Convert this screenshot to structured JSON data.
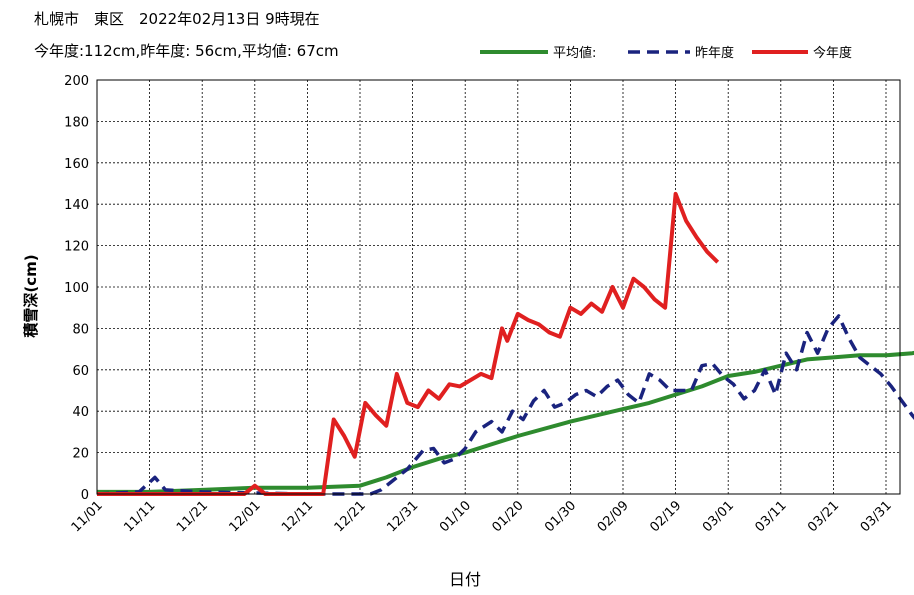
{
  "header": {
    "line1": "札幌市　東区　2022年02月13日 9時現在",
    "line2": "今年度:112cm,昨年度: 56cm,平均値: 67cm"
  },
  "chart_data": {
    "type": "line",
    "xlabel": "日付",
    "ylabel": "積雪深(cm)",
    "ylim": [
      0,
      200
    ],
    "yticks": [
      0,
      20,
      40,
      60,
      80,
      100,
      120,
      140,
      160,
      180,
      200
    ],
    "xticks": [
      "11/01",
      "11/11",
      "11/21",
      "12/01",
      "12/11",
      "12/21",
      "12/31",
      "01/10",
      "01/20",
      "01/30",
      "02/09",
      "02/19",
      "03/01",
      "03/11",
      "03/21",
      "03/31"
    ],
    "x_days_per_tick": 10,
    "x_range_days": [
      0,
      150
    ],
    "grid": true,
    "legend_position": "top-right",
    "series": [
      {
        "name": "平均値:",
        "color": "#2e8b2e",
        "dash": "solid",
        "points": [
          [
            0,
            1
          ],
          [
            10,
            1
          ],
          [
            20,
            2
          ],
          [
            30,
            3
          ],
          [
            40,
            3
          ],
          [
            50,
            4
          ],
          [
            55,
            8
          ],
          [
            60,
            13
          ],
          [
            65,
            17
          ],
          [
            70,
            20
          ],
          [
            80,
            28
          ],
          [
            90,
            35
          ],
          [
            100,
            41
          ],
          [
            105,
            44
          ],
          [
            110,
            48
          ],
          [
            115,
            52
          ],
          [
            120,
            57
          ],
          [
            125,
            59
          ],
          [
            130,
            62
          ],
          [
            135,
            65
          ],
          [
            140,
            66
          ],
          [
            145,
            67
          ],
          [
            150,
            67
          ],
          [
            155,
            68
          ],
          [
            160,
            70
          ],
          [
            165,
            68
          ],
          [
            170,
            60
          ],
          [
            175,
            52
          ],
          [
            180,
            42
          ],
          [
            185,
            30
          ],
          [
            190,
            20
          ],
          [
            195,
            12
          ],
          [
            200,
            5
          ]
        ]
      },
      {
        "name": "昨年度",
        "color": "#1a237e",
        "dash": "dashed",
        "points": [
          [
            0,
            0
          ],
          [
            8,
            1
          ],
          [
            11,
            8
          ],
          [
            13,
            2
          ],
          [
            20,
            1
          ],
          [
            40,
            0
          ],
          [
            52,
            0
          ],
          [
            54,
            2
          ],
          [
            56,
            6
          ],
          [
            59,
            12
          ],
          [
            62,
            21
          ],
          [
            64,
            22
          ],
          [
            66,
            15
          ],
          [
            68,
            17
          ],
          [
            70,
            22
          ],
          [
            72,
            30
          ],
          [
            75,
            35
          ],
          [
            77,
            30
          ],
          [
            79,
            40
          ],
          [
            81,
            36
          ],
          [
            83,
            45
          ],
          [
            85,
            50
          ],
          [
            87,
            42
          ],
          [
            89,
            44
          ],
          [
            91,
            48
          ],
          [
            93,
            50
          ],
          [
            95,
            47
          ],
          [
            97,
            52
          ],
          [
            99,
            55
          ],
          [
            101,
            48
          ],
          [
            103,
            44
          ],
          [
            105,
            58
          ],
          [
            107,
            55
          ],
          [
            109,
            50
          ],
          [
            111,
            50
          ],
          [
            113,
            50
          ],
          [
            115,
            62
          ],
          [
            117,
            63
          ],
          [
            119,
            57
          ],
          [
            121,
            53
          ],
          [
            123,
            46
          ],
          [
            125,
            50
          ],
          [
            127,
            60
          ],
          [
            129,
            48
          ],
          [
            131,
            68
          ],
          [
            133,
            60
          ],
          [
            135,
            78
          ],
          [
            137,
            68
          ],
          [
            139,
            80
          ],
          [
            141,
            86
          ],
          [
            143,
            75
          ],
          [
            145,
            66
          ],
          [
            147,
            62
          ],
          [
            149,
            58
          ],
          [
            151,
            52
          ],
          [
            153,
            45
          ],
          [
            155,
            38
          ],
          [
            157,
            32
          ],
          [
            159,
            30
          ],
          [
            161,
            22
          ],
          [
            163,
            12
          ],
          [
            165,
            1
          ],
          [
            168,
            0
          ],
          [
            176,
            0
          ],
          [
            178,
            2
          ]
        ]
      },
      {
        "name": "今年度",
        "color": "#e02020",
        "dash": "solid",
        "points": [
          [
            0,
            0
          ],
          [
            10,
            0
          ],
          [
            20,
            0
          ],
          [
            28,
            0
          ],
          [
            30,
            4
          ],
          [
            32,
            0
          ],
          [
            41,
            0
          ],
          [
            43,
            0
          ],
          [
            45,
            36
          ],
          [
            47,
            28
          ],
          [
            49,
            18
          ],
          [
            51,
            44
          ],
          [
            53,
            38
          ],
          [
            55,
            33
          ],
          [
            57,
            58
          ],
          [
            59,
            44
          ],
          [
            61,
            42
          ],
          [
            63,
            50
          ],
          [
            65,
            46
          ],
          [
            67,
            53
          ],
          [
            69,
            52
          ],
          [
            71,
            55
          ],
          [
            73,
            58
          ],
          [
            75,
            56
          ],
          [
            77,
            80
          ],
          [
            78,
            74
          ],
          [
            80,
            87
          ],
          [
            82,
            84
          ],
          [
            84,
            82
          ],
          [
            86,
            78
          ],
          [
            88,
            76
          ],
          [
            90,
            90
          ],
          [
            92,
            87
          ],
          [
            94,
            92
          ],
          [
            96,
            88
          ],
          [
            98,
            100
          ],
          [
            100,
            90
          ],
          [
            102,
            104
          ],
          [
            104,
            100
          ],
          [
            106,
            94
          ],
          [
            108,
            90
          ],
          [
            110,
            145
          ],
          [
            112,
            132
          ],
          [
            114,
            124
          ],
          [
            116,
            117
          ],
          [
            118,
            112
          ]
        ]
      }
    ]
  }
}
